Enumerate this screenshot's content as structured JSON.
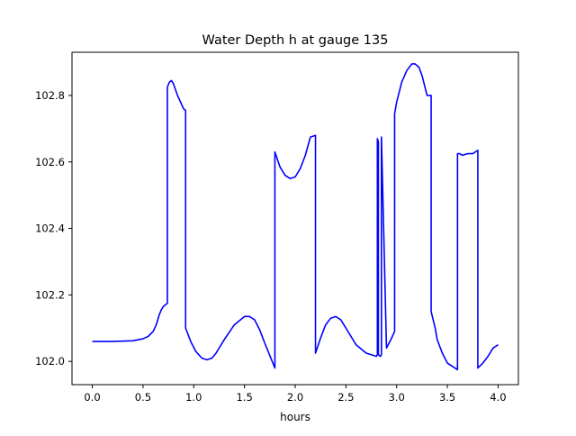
{
  "chart_data": {
    "type": "line",
    "title": "Water Depth h at gauge 135",
    "xlabel": "hours",
    "ylabel": "",
    "xlim": [
      -0.2,
      4.2
    ],
    "ylim": [
      101.93,
      102.93
    ],
    "xticks": [
      0.0,
      0.5,
      1.0,
      1.5,
      2.0,
      2.5,
      3.0,
      3.5,
      4.0
    ],
    "xtick_labels": [
      "0.0",
      "0.5",
      "1.0",
      "1.5",
      "2.0",
      "2.5",
      "3.0",
      "3.5",
      "4.0"
    ],
    "yticks": [
      102.0,
      102.2,
      102.4,
      102.6,
      102.8
    ],
    "ytick_labels": [
      "102.0",
      "102.2",
      "102.4",
      "102.6",
      "102.8"
    ],
    "grid": false,
    "series": [
      {
        "name": "h",
        "color": "#0000ff",
        "x": [
          0.0,
          0.2,
          0.4,
          0.5,
          0.55,
          0.6,
          0.63,
          0.66,
          0.68,
          0.7,
          0.74,
          0.74,
          0.76,
          0.78,
          0.8,
          0.84,
          0.9,
          0.92,
          0.92,
          0.97,
          1.02,
          1.08,
          1.13,
          1.18,
          1.22,
          1.3,
          1.4,
          1.5,
          1.55,
          1.6,
          1.65,
          1.7,
          1.8,
          1.8,
          1.85,
          1.9,
          1.95,
          2.0,
          2.05,
          2.1,
          2.15,
          2.2,
          2.2,
          2.25,
          2.3,
          2.35,
          2.4,
          2.45,
          2.5,
          2.6,
          2.7,
          2.75,
          2.8,
          2.81,
          2.81,
          2.82,
          2.82,
          2.84,
          2.85,
          2.85,
          2.9,
          2.95,
          2.98,
          2.98,
          3.0,
          3.05,
          3.1,
          3.15,
          3.18,
          3.22,
          3.25,
          3.3,
          3.34,
          3.34,
          3.38,
          3.4,
          3.45,
          3.5,
          3.55,
          3.6,
          3.6,
          3.62,
          3.65,
          3.7,
          3.75,
          3.8,
          3.8,
          3.85,
          3.9,
          3.95,
          4.0
        ],
        "values": [
          102.06,
          102.06,
          102.062,
          102.068,
          102.075,
          102.09,
          102.11,
          102.14,
          102.155,
          102.165,
          102.175,
          102.825,
          102.84,
          102.845,
          102.835,
          102.8,
          102.76,
          102.755,
          102.1,
          102.06,
          102.03,
          102.01,
          102.005,
          102.01,
          102.025,
          102.065,
          102.11,
          102.135,
          102.135,
          102.125,
          102.095,
          102.055,
          101.98,
          102.63,
          102.585,
          102.56,
          102.55,
          102.555,
          102.58,
          102.62,
          102.675,
          102.68,
          102.025,
          102.07,
          102.11,
          102.13,
          102.135,
          102.125,
          102.1,
          102.05,
          102.025,
          102.02,
          102.015,
          102.02,
          102.67,
          102.66,
          102.02,
          102.015,
          102.02,
          102.675,
          102.04,
          102.07,
          102.09,
          102.745,
          102.78,
          102.84,
          102.875,
          102.895,
          102.895,
          102.885,
          102.86,
          102.8,
          102.8,
          102.15,
          102.1,
          102.065,
          102.025,
          101.995,
          101.985,
          101.975,
          102.625,
          102.625,
          102.62,
          102.625,
          102.625,
          102.635,
          101.98,
          101.995,
          102.015,
          102.04,
          102.05
        ]
      }
    ]
  }
}
